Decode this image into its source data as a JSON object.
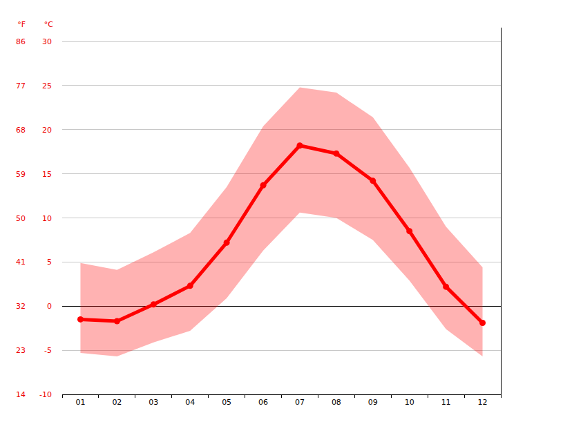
{
  "chart_data": {
    "type": "line",
    "categories": [
      "01",
      "02",
      "03",
      "04",
      "05",
      "06",
      "07",
      "08",
      "09",
      "10",
      "11",
      "12"
    ],
    "series": [
      {
        "color": "#ff0000",
        "marker": "circle",
        "line_style": "solid",
        "values": [
          -1.5,
          -1.7,
          0.2,
          2.3,
          7.2,
          13.7,
          18.2,
          17.3,
          14.2,
          8.5,
          2.2,
          -1.9
        ],
        "low": [
          -5.3,
          -5.7,
          -4.1,
          -2.8,
          0.9,
          6.3,
          10.6,
          10.0,
          7.5,
          2.9,
          -2.6,
          -5.7
        ],
        "high": [
          4.9,
          4.1,
          6.1,
          8.3,
          13.5,
          20.4,
          24.8,
          24.2,
          21.4,
          15.7,
          9.0,
          4.4
        ]
      }
    ],
    "y_label": "°C",
    "y2_label": "°F",
    "ylim": [
      -10,
      30
    ],
    "yticks": [
      -10,
      -5,
      0,
      5,
      10,
      15,
      20,
      25,
      30
    ],
    "y2lim": [
      14,
      86
    ],
    "y2ticks": [
      14,
      23,
      32,
      41,
      50,
      59,
      68,
      77,
      86
    ],
    "grid": true
  }
}
